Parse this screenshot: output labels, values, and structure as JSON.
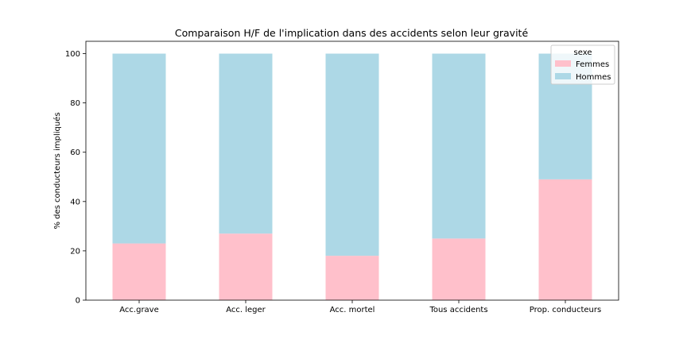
{
  "chart_data": {
    "type": "bar",
    "stacked": true,
    "title": "Comparaison H/F de l'implication dans des accidents selon leur gravité",
    "xlabel": "",
    "ylabel": "% des conducteurs impliqués",
    "ylim": [
      0,
      105
    ],
    "yticks": [
      0,
      20,
      40,
      60,
      80,
      100
    ],
    "categories": [
      "Acc.grave",
      "Acc. leger",
      "Acc. mortel",
      "Tous accidents",
      "Prop. conducteurs"
    ],
    "series": [
      {
        "name": "Femmes",
        "color": "#ffc0cb",
        "values": [
          23,
          27,
          18,
          25,
          49
        ]
      },
      {
        "name": "Hommes",
        "color": "#add8e6",
        "values": [
          77,
          73,
          82,
          75,
          51
        ]
      }
    ],
    "legend": {
      "title": "sexe",
      "placement": "top-right"
    },
    "grid": false
  }
}
